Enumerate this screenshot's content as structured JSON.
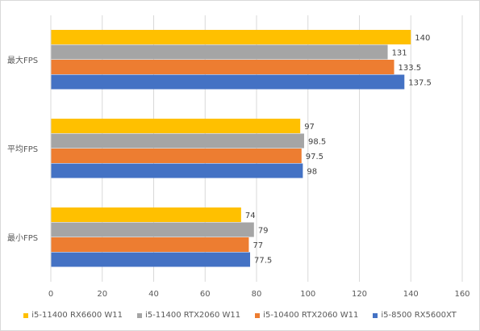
{
  "chart_data": {
    "type": "bar",
    "orientation": "horizontal",
    "categories": [
      "最大FPS",
      "平均FPS",
      "最小FPS"
    ],
    "series": [
      {
        "name": "i5-11400 RX6600 W11",
        "color": "#FFC000",
        "values": [
          140,
          97,
          74
        ],
        "labels": [
          "140",
          "97",
          "74"
        ]
      },
      {
        "name": "i5-11400 RTX2060 W11",
        "color": "#A5A5A5",
        "values": [
          131,
          98.5,
          79
        ],
        "labels": [
          "131",
          "98.5",
          "79"
        ]
      },
      {
        "name": "i5-10400 RTX2060 W11",
        "color": "#ED7D31",
        "values": [
          133.5,
          97.5,
          77
        ],
        "labels": [
          "133.5",
          "97.5",
          "77"
        ]
      },
      {
        "name": "i5-8500 RX5600XT",
        "color": "#4472C4",
        "values": [
          137.5,
          98,
          77.5
        ],
        "labels": [
          "137.5",
          "98",
          "77.5"
        ]
      }
    ],
    "xlim": [
      0,
      160
    ],
    "xticks": [
      "0",
      "20",
      "40",
      "60",
      "80",
      "100",
      "120",
      "140",
      "160"
    ],
    "grid": "vertical",
    "legend": "bottom"
  }
}
